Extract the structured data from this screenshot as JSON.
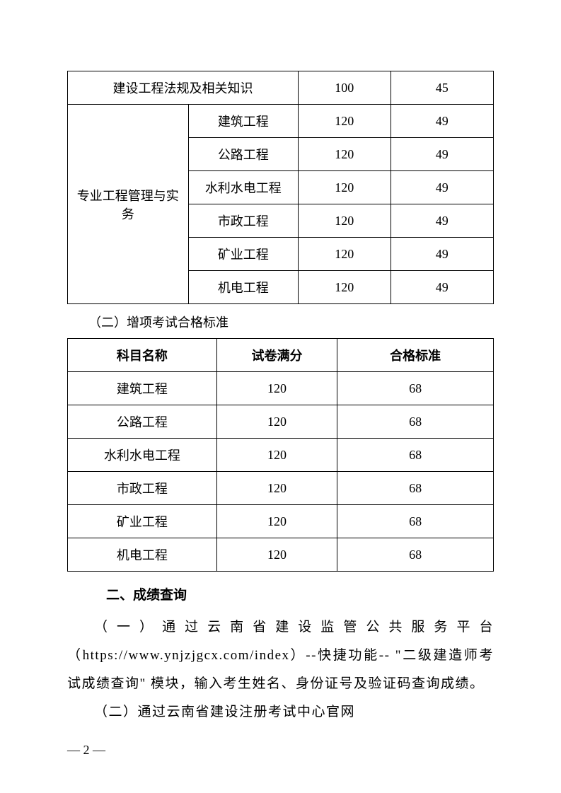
{
  "table1": {
    "row1": {
      "label": "建设工程法规及相关知识",
      "full": "100",
      "pass": "45"
    },
    "groupLabel": "专业工程管理与实务",
    "rows": [
      {
        "subject": "建筑工程",
        "full": "120",
        "pass": "49"
      },
      {
        "subject": "公路工程",
        "full": "120",
        "pass": "49"
      },
      {
        "subject": "水利水电工程",
        "full": "120",
        "pass": "49"
      },
      {
        "subject": "市政工程",
        "full": "120",
        "pass": "49"
      },
      {
        "subject": "矿业工程",
        "full": "120",
        "pass": "49"
      },
      {
        "subject": "机电工程",
        "full": "120",
        "pass": "49"
      }
    ]
  },
  "sectionLabel": "（二）增项考试合格标准",
  "table2": {
    "headers": [
      "科目名称",
      "试卷满分",
      "合格标准"
    ],
    "rows": [
      {
        "subject": "建筑工程",
        "full": "120",
        "pass": "68"
      },
      {
        "subject": "公路工程",
        "full": "120",
        "pass": "68"
      },
      {
        "subject": "水利水电工程",
        "full": "120",
        "pass": "68"
      },
      {
        "subject": "市政工程",
        "full": "120",
        "pass": "68"
      },
      {
        "subject": "矿业工程",
        "full": "120",
        "pass": "68"
      },
      {
        "subject": "机电工程",
        "full": "120",
        "pass": "68"
      }
    ]
  },
  "heading": "二、成绩查询",
  "para1": "（一）通过云南省建设监管公共服务平台（https://www.ynjzjgcx.com/index）--快捷功能-- \"二级建造师考试成绩查询\" 模块，输入考生姓名、身份证号及验证码查询成绩。",
  "para2": "（二）通过云南省建设注册考试中心官网",
  "pageNumber": "— 2 —"
}
